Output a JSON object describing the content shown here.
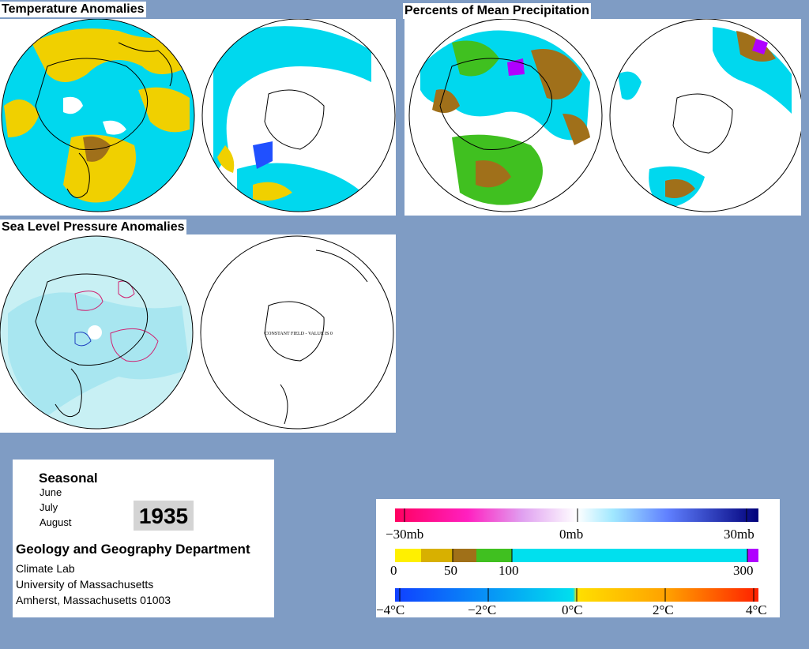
{
  "panels": {
    "temperature": {
      "title": "Temperature Anomalies"
    },
    "precipitation": {
      "title": "Percents of Mean Precipitation"
    },
    "pressure": {
      "title": "Sea Level Pressure Anomalies",
      "south_note": "CONSTANT FIELD - VALUE IS 0"
    }
  },
  "info": {
    "seasonal": "Seasonal",
    "months": [
      "June",
      "July",
      "August"
    ],
    "year": "1935",
    "department": "Geology and Geography Department",
    "lines": [
      "Climate Lab",
      "University of Massachusetts",
      "Amherst, Massachusetts 01003"
    ]
  },
  "legend": {
    "pressure": {
      "labels": [
        "−30mb",
        "0mb",
        "30mb"
      ]
    },
    "precip": {
      "labels": [
        "0",
        "50",
        "100",
        "300"
      ]
    },
    "temp": {
      "labels": [
        "−4°C",
        "−2°C",
        "0°C",
        "2°C",
        "4°C"
      ]
    }
  },
  "colors": {
    "background": "#7f9cc4",
    "cyan": "#00e0ee",
    "yellow": "#f0d800",
    "brown": "#9a6a18",
    "green": "#40c020",
    "light_cyan": "#c8f0f4",
    "magenta": "#ff0088",
    "dark_blue": "#00008a",
    "purple": "#b000ff",
    "red": "#ff2000",
    "blue": "#2050ff"
  }
}
